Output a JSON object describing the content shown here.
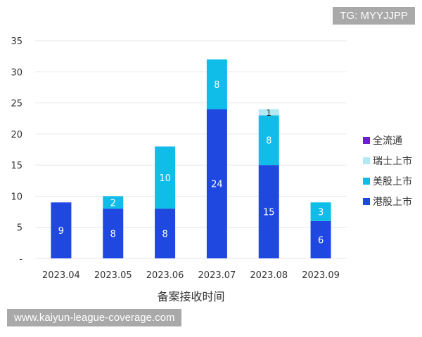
{
  "chart_data": {
    "type": "bar",
    "stacked": true,
    "categories": [
      "2023.04",
      "2023.05",
      "2023.06",
      "2023.07",
      "2023.08",
      "2023.09"
    ],
    "xlabel": "备案接收时间",
    "ylabel": "",
    "ylim": [
      0,
      35
    ],
    "yticks": [
      0,
      5,
      10,
      15,
      20,
      25,
      30,
      35
    ],
    "ytick_labels": [
      "-",
      "5",
      "10",
      "15",
      "20",
      "25",
      "30",
      "35"
    ],
    "grid": true,
    "legend_position": "right",
    "series": [
      {
        "name": "港股上市",
        "color": "#1f48e0",
        "values": [
          9,
          8,
          8,
          24,
          15,
          6
        ]
      },
      {
        "name": "美股上市",
        "color": "#10bde8",
        "values": [
          0,
          2,
          10,
          8,
          8,
          3
        ]
      },
      {
        "name": "瑞士上市",
        "color": "#b3e8f5",
        "values": [
          0,
          0,
          0,
          0,
          1,
          0
        ]
      },
      {
        "name": "全流通",
        "color": "#6b1fd0",
        "values": [
          0,
          0,
          0,
          0,
          0,
          0
        ]
      }
    ]
  },
  "watermarks": {
    "top": "TG: MYYJJPP",
    "bottom": "www.kaiyun-league-coverage.com"
  }
}
